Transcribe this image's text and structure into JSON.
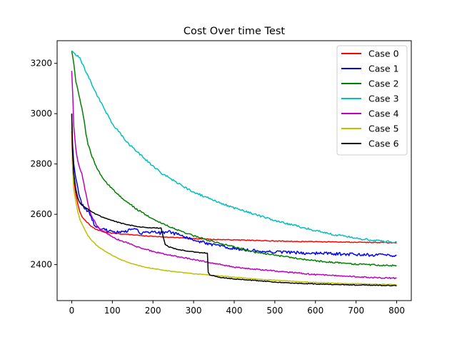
{
  "chart_data": {
    "type": "line",
    "title": "Cost Over time Test",
    "xlabel": "",
    "ylabel": "",
    "xlim": [
      -36,
      836
    ],
    "ylim": [
      2257,
      3290
    ],
    "xticks": [
      0,
      100,
      200,
      300,
      400,
      500,
      600,
      700,
      800
    ],
    "yticks": [
      2400,
      2600,
      2800,
      3000,
      3200
    ],
    "grid": false,
    "legend_position": "top-right",
    "series": [
      {
        "name": "Case 0",
        "color": "#ff0000",
        "points": [
          [
            0,
            2930
          ],
          [
            2,
            2800
          ],
          [
            5,
            2740
          ],
          [
            10,
            2680
          ],
          [
            15,
            2640
          ],
          [
            20,
            2610
          ],
          [
            25,
            2590
          ],
          [
            30,
            2580
          ],
          [
            40,
            2565
          ],
          [
            50,
            2550
          ],
          [
            60,
            2540
          ],
          [
            80,
            2530
          ],
          [
            100,
            2525
          ],
          [
            150,
            2518
          ],
          [
            200,
            2512
          ],
          [
            250,
            2508
          ],
          [
            300,
            2503
          ],
          [
            350,
            2500
          ],
          [
            400,
            2498
          ],
          [
            450,
            2496
          ],
          [
            500,
            2494
          ],
          [
            550,
            2492
          ],
          [
            600,
            2491
          ],
          [
            650,
            2490
          ],
          [
            700,
            2489
          ],
          [
            750,
            2488
          ],
          [
            800,
            2487
          ]
        ]
      },
      {
        "name": "Case 1",
        "color": "#0000ff",
        "points": [
          [
            0,
            3000
          ],
          [
            2,
            2880
          ],
          [
            5,
            2800
          ],
          [
            10,
            2740
          ],
          [
            15,
            2700
          ],
          [
            20,
            2670
          ],
          [
            25,
            2640
          ],
          [
            30,
            2630
          ],
          [
            35,
            2620
          ],
          [
            40,
            2610
          ],
          [
            45,
            2600
          ],
          [
            50,
            2580
          ],
          [
            55,
            2560
          ],
          [
            60,
            2550
          ],
          [
            70,
            2540
          ],
          [
            80,
            2538
          ],
          [
            100,
            2532
          ],
          [
            120,
            2530
          ],
          [
            140,
            2535
          ],
          [
            160,
            2540
          ],
          [
            170,
            2520
          ],
          [
            180,
            2530
          ],
          [
            200,
            2528
          ],
          [
            220,
            2525
          ],
          [
            240,
            2530
          ],
          [
            260,
            2520
          ],
          [
            280,
            2510
          ],
          [
            300,
            2500
          ],
          [
            330,
            2485
          ],
          [
            360,
            2475
          ],
          [
            400,
            2465
          ],
          [
            450,
            2455
          ],
          [
            500,
            2450
          ],
          [
            550,
            2448
          ],
          [
            600,
            2445
          ],
          [
            650,
            2443
          ],
          [
            700,
            2440
          ],
          [
            750,
            2438
          ],
          [
            800,
            2437
          ]
        ]
      },
      {
        "name": "Case 2",
        "color": "#008000",
        "points": [
          [
            0,
            3250
          ],
          [
            5,
            3200
          ],
          [
            10,
            3130
          ],
          [
            20,
            3060
          ],
          [
            30,
            2980
          ],
          [
            35,
            2920
          ],
          [
            40,
            2880
          ],
          [
            50,
            2830
          ],
          [
            60,
            2790
          ],
          [
            70,
            2760
          ],
          [
            80,
            2735
          ],
          [
            100,
            2700
          ],
          [
            120,
            2670
          ],
          [
            140,
            2645
          ],
          [
            160,
            2620
          ],
          [
            180,
            2600
          ],
          [
            200,
            2580
          ],
          [
            220,
            2565
          ],
          [
            250,
            2545
          ],
          [
            280,
            2525
          ],
          [
            300,
            2515
          ],
          [
            350,
            2490
          ],
          [
            400,
            2470
          ],
          [
            450,
            2450
          ],
          [
            500,
            2438
          ],
          [
            550,
            2425
          ],
          [
            600,
            2415
          ],
          [
            650,
            2408
          ],
          [
            700,
            2402
          ],
          [
            750,
            2398
          ],
          [
            800,
            2396
          ]
        ]
      },
      {
        "name": "Case 3",
        "color": "#00bfbf",
        "points": [
          [
            0,
            3250
          ],
          [
            20,
            3220
          ],
          [
            40,
            3150
          ],
          [
            60,
            3080
          ],
          [
            80,
            3020
          ],
          [
            100,
            2960
          ],
          [
            120,
            2920
          ],
          [
            140,
            2880
          ],
          [
            160,
            2850
          ],
          [
            180,
            2820
          ],
          [
            200,
            2790
          ],
          [
            220,
            2765
          ],
          [
            240,
            2745
          ],
          [
            260,
            2725
          ],
          [
            280,
            2705
          ],
          [
            300,
            2690
          ],
          [
            320,
            2675
          ],
          [
            350,
            2655
          ],
          [
            400,
            2625
          ],
          [
            450,
            2600
          ],
          [
            500,
            2575
          ],
          [
            550,
            2555
          ],
          [
            600,
            2535
          ],
          [
            650,
            2518
          ],
          [
            700,
            2505
          ],
          [
            750,
            2495
          ],
          [
            800,
            2488
          ]
        ]
      },
      {
        "name": "Case 4",
        "color": "#bf00bf",
        "points": [
          [
            0,
            3170
          ],
          [
            3,
            3050
          ],
          [
            5,
            2950
          ],
          [
            10,
            2860
          ],
          [
            15,
            2810
          ],
          [
            20,
            2780
          ],
          [
            25,
            2760
          ],
          [
            30,
            2720
          ],
          [
            35,
            2680
          ],
          [
            40,
            2640
          ],
          [
            45,
            2610
          ],
          [
            50,
            2590
          ],
          [
            60,
            2560
          ],
          [
            70,
            2540
          ],
          [
            80,
            2530
          ],
          [
            100,
            2510
          ],
          [
            120,
            2495
          ],
          [
            140,
            2485
          ],
          [
            160,
            2472
          ],
          [
            180,
            2462
          ],
          [
            200,
            2452
          ],
          [
            250,
            2435
          ],
          [
            300,
            2420
          ],
          [
            350,
            2405
          ],
          [
            400,
            2390
          ],
          [
            450,
            2382
          ],
          [
            500,
            2375
          ],
          [
            550,
            2368
          ],
          [
            600,
            2360
          ],
          [
            650,
            2356
          ],
          [
            700,
            2352
          ],
          [
            750,
            2348
          ],
          [
            800,
            2346
          ]
        ]
      },
      {
        "name": "Case 5",
        "color": "#bfbf00",
        "points": [
          [
            0,
            2990
          ],
          [
            2,
            2780
          ],
          [
            5,
            2700
          ],
          [
            10,
            2650
          ],
          [
            15,
            2610
          ],
          [
            20,
            2580
          ],
          [
            30,
            2545
          ],
          [
            40,
            2515
          ],
          [
            50,
            2495
          ],
          [
            60,
            2478
          ],
          [
            80,
            2455
          ],
          [
            100,
            2437
          ],
          [
            120,
            2420
          ],
          [
            140,
            2408
          ],
          [
            160,
            2398
          ],
          [
            180,
            2390
          ],
          [
            200,
            2384
          ],
          [
            250,
            2372
          ],
          [
            300,
            2364
          ],
          [
            350,
            2357
          ],
          [
            400,
            2350
          ],
          [
            450,
            2343
          ],
          [
            500,
            2338
          ],
          [
            550,
            2333
          ],
          [
            600,
            2329
          ],
          [
            650,
            2326
          ],
          [
            700,
            2324
          ],
          [
            750,
            2322
          ],
          [
            800,
            2321
          ]
        ]
      },
      {
        "name": "Case 6",
        "color": "#000000",
        "points": [
          [
            0,
            3000
          ],
          [
            2,
            2850
          ],
          [
            5,
            2760
          ],
          [
            10,
            2700
          ],
          [
            15,
            2665
          ],
          [
            20,
            2645
          ],
          [
            30,
            2630
          ],
          [
            40,
            2620
          ],
          [
            50,
            2610
          ],
          [
            60,
            2600
          ],
          [
            80,
            2585
          ],
          [
            100,
            2575
          ],
          [
            120,
            2565
          ],
          [
            140,
            2558
          ],
          [
            160,
            2552
          ],
          [
            180,
            2548
          ],
          [
            200,
            2546
          ],
          [
            220,
            2545
          ],
          [
            225,
            2510
          ],
          [
            230,
            2480
          ],
          [
            240,
            2470
          ],
          [
            260,
            2460
          ],
          [
            280,
            2455
          ],
          [
            300,
            2450
          ],
          [
            320,
            2447
          ],
          [
            334,
            2446
          ],
          [
            336,
            2370
          ],
          [
            340,
            2360
          ],
          [
            360,
            2350
          ],
          [
            400,
            2343
          ],
          [
            450,
            2337
          ],
          [
            500,
            2331
          ],
          [
            550,
            2326
          ],
          [
            600,
            2323
          ],
          [
            650,
            2321
          ],
          [
            700,
            2319
          ],
          [
            750,
            2318
          ],
          [
            800,
            2316
          ]
        ]
      }
    ]
  }
}
